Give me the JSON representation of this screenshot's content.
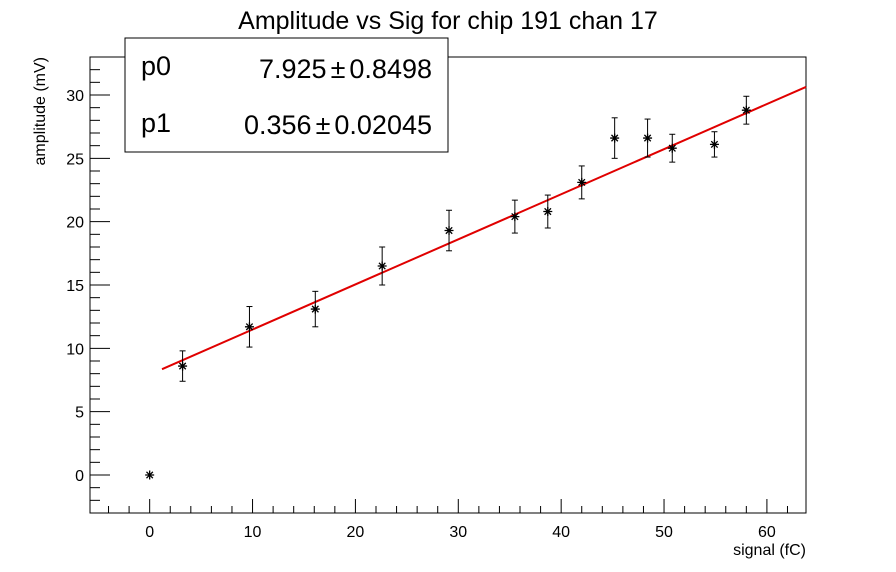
{
  "chart_data": {
    "type": "scatter",
    "title": "Amplitude vs Sig for chip 191 chan 17",
    "xlabel": "signal (fC)",
    "ylabel": "amplitude (mV)",
    "xlim": [
      -5.8,
      63.8
    ],
    "ylim": [
      -3,
      33
    ],
    "xticks": [
      0,
      10,
      20,
      30,
      40,
      50,
      60
    ],
    "yticks": [
      0,
      5,
      10,
      15,
      20,
      25,
      30
    ],
    "grid": false,
    "series": [
      {
        "marker": "star",
        "color": "#000000",
        "x": [
          0,
          3.2,
          9.7,
          16.1,
          22.6,
          29.1,
          35.5,
          38.7,
          42.0,
          45.2,
          48.4,
          50.8,
          54.9,
          58.0
        ],
        "y": [
          0,
          8.6,
          11.7,
          13.1,
          16.5,
          19.3,
          20.4,
          20.8,
          23.1,
          26.6,
          26.6,
          25.8,
          26.1,
          28.8
        ],
        "yerr": [
          0,
          1.2,
          1.6,
          1.4,
          1.5,
          1.6,
          1.3,
          1.3,
          1.3,
          1.6,
          1.5,
          1.1,
          1.0,
          1.1
        ]
      }
    ],
    "fit": {
      "name": "linear fit",
      "color": "#e00000",
      "x_range": [
        1.2,
        63.8
      ],
      "p0": 7.925,
      "p1": 0.356
    },
    "stats_box": {
      "position": "top-left",
      "rows": [
        {
          "name": "p0",
          "value": "7.925",
          "sep": "±",
          "error": "0.8498"
        },
        {
          "name": "p1",
          "value": "0.356",
          "sep": "±",
          "error": "0.02045"
        }
      ]
    }
  }
}
